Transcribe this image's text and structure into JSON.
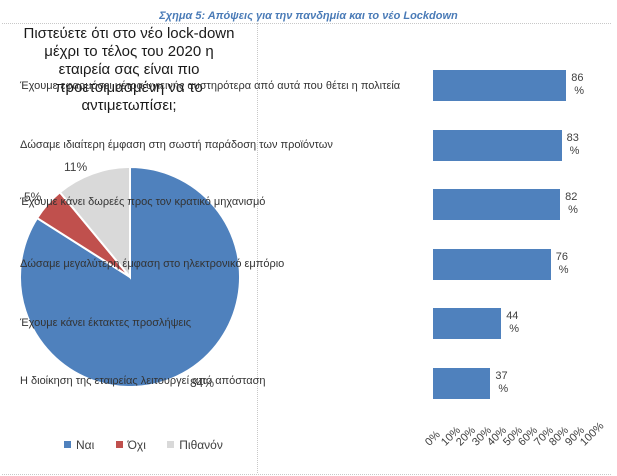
{
  "figure": {
    "title": "Σχημα 5: Απόψεις για την πανδημία και το νέο Lockdown"
  },
  "colors": {
    "blue": "#4f81bd",
    "red": "#c0504d",
    "gray": "#d9d9d9"
  },
  "chart_data": [
    {
      "type": "pie",
      "title": "Πιστεύετε ότι στο νέο lock-down μέχρι το τέλος του 2020 η εταιρεία σας  είναι πιο προετοιμασμένη να το αντιμετωπίσει;",
      "title_lines": [
        "Πιστεύετε ότι στο νέο lock-down",
        "μέχρι το τέλος του 2020 η",
        "εταιρεία σας  είναι πιο",
        "προετοιμασμένη να το",
        "αντιμετωπίσει;"
      ],
      "categories": [
        "Ναι",
        "Όχι",
        "Πιθανόν"
      ],
      "values": [
        84,
        5,
        11
      ],
      "value_labels": [
        "84%",
        "5%",
        "11%"
      ],
      "colors": [
        "#4f81bd",
        "#c0504d",
        "#d9d9d9"
      ],
      "legend_position": "bottom"
    },
    {
      "type": "bar",
      "orientation": "horizontal",
      "categories": [
        "Έχουμε εφαρμόσει μέτρα υγιεινής αυστηρότερα από αυτά που θέτει η πολιτεία",
        "Δώσαμε ιδιαίτερη έμφαση στη σωστή παράδοση των προϊόντων",
        "Έχουμε κάνει δωρεές προς τον κρατικό μηχανισμό",
        "Δώσαμε μεγαλύτερη έμφαση στο ηλεκτρονικό εμπόριο",
        "Έχουμε κάνει έκτακτες προσλήψεις",
        "Η διοίκηση της εταιρείας λειτουργεί από απόσταση"
      ],
      "values": [
        86,
        83,
        82,
        76,
        44,
        37
      ],
      "value_labels": [
        [
          "86",
          "%"
        ],
        [
          "83",
          "%"
        ],
        [
          "82",
          "%"
        ],
        [
          "76",
          "%"
        ],
        [
          "44",
          "%"
        ],
        [
          "37",
          "%"
        ]
      ],
      "xlim": [
        0,
        100
      ],
      "x_ticks": [
        "0%",
        "10%",
        "20%",
        "30%",
        "40%",
        "50%",
        "60%",
        "70%",
        "80%",
        "90%",
        "100%"
      ],
      "grid": false,
      "color": "#4f81bd"
    }
  ]
}
